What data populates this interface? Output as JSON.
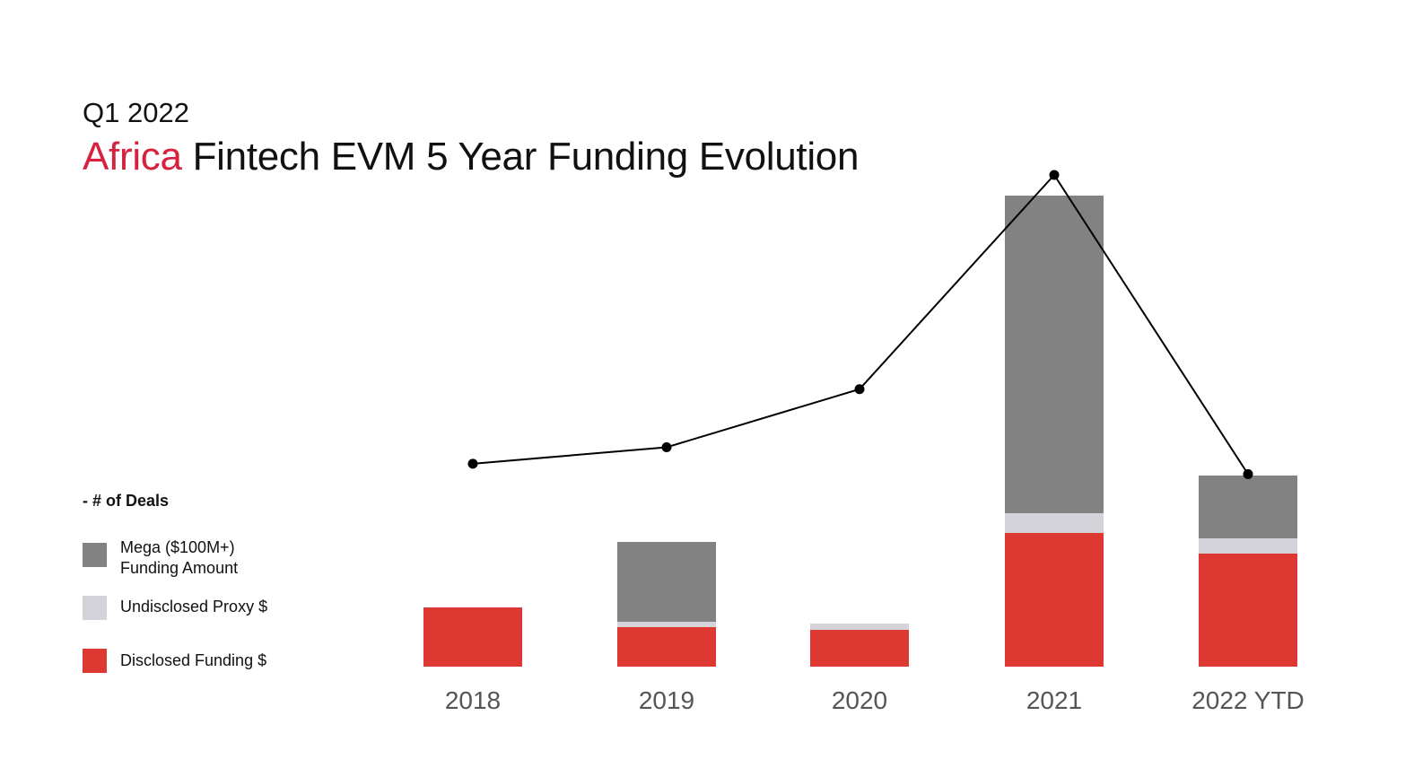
{
  "header": {
    "subtitle": "Q1 2022",
    "title_accent": "Africa",
    "title_rest": " Fintech EVM 5 Year Funding Evolution"
  },
  "legend": {
    "deals_label": "- # of Deals",
    "items": [
      {
        "label_line1": "Mega ($100M+)",
        "label_line2": "Funding Amount",
        "color": "#828282"
      },
      {
        "label_line1": "Undisclosed Proxy $",
        "label_line2": "",
        "color": "#d3d3d9"
      },
      {
        "label_line1": "Disclosed Funding $",
        "label_line2": "",
        "color": "#dd3831"
      }
    ]
  },
  "colors": {
    "mega": "#828282",
    "undisclosed": "#d3d3d9",
    "disclosed": "#dd3831",
    "deals_line": "#000000",
    "title_accent": "#d6223f"
  },
  "chart_data": {
    "type": "bar",
    "stacked": true,
    "categories": [
      "2018",
      "2019",
      "2020",
      "2021",
      "2022 YTD"
    ],
    "series": [
      {
        "name": "Disclosed Funding $",
        "values": [
          66,
          44,
          41,
          149,
          126
        ]
      },
      {
        "name": "Undisclosed Proxy $",
        "values": [
          0,
          6,
          7,
          22,
          17
        ]
      },
      {
        "name": "Mega ($100M+) Funding Amount",
        "values": [
          0,
          89,
          0,
          354,
          70
        ]
      }
    ],
    "line_series": {
      "name": "# of Deals",
      "values": [
        234,
        253,
        320,
        567,
        222
      ]
    },
    "ylim": [
      0,
      600
    ],
    "grid": false,
    "legend_position": "left"
  }
}
